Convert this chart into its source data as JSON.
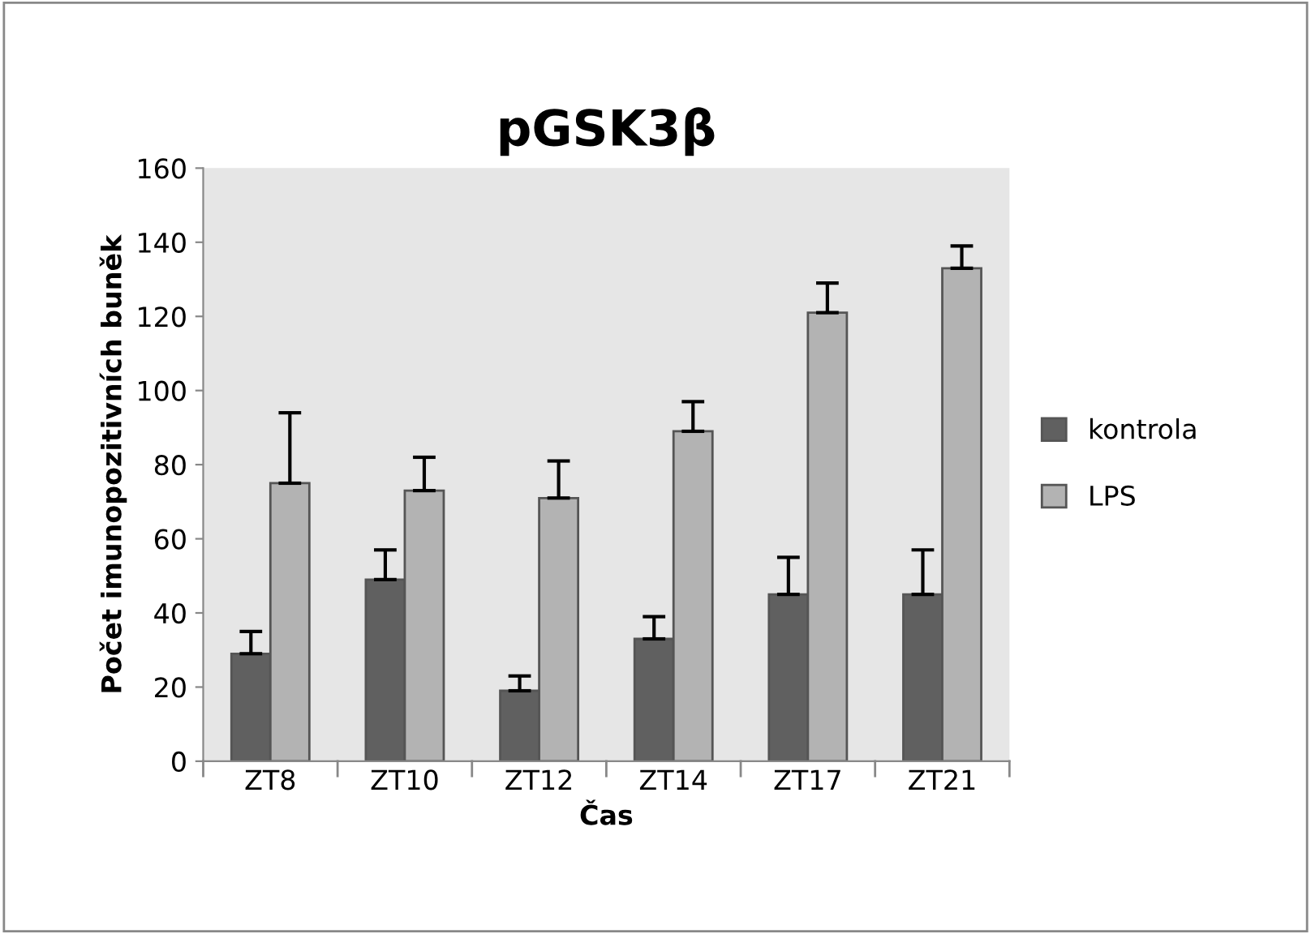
{
  "chart_data": {
    "type": "bar",
    "title": "pGSK3β",
    "xlabel": "Čas",
    "ylabel": "Počet imunopozitivních buněk",
    "categories": [
      "ZT8",
      "ZT10",
      "ZT12",
      "ZT14",
      "ZT17",
      "ZT21"
    ],
    "series": [
      {
        "name": "kontrola",
        "color": "#606060",
        "values": [
          29,
          49,
          19,
          33,
          45,
          45
        ],
        "errors": [
          [
            29,
            35
          ],
          [
            49,
            57
          ],
          [
            19,
            23
          ],
          [
            33,
            39
          ],
          [
            45,
            55
          ],
          [
            45,
            57
          ]
        ]
      },
      {
        "name": "LPS",
        "color": "#b3b3b3",
        "values": [
          75,
          73,
          71,
          89,
          121,
          133
        ],
        "errors": [
          [
            75,
            94
          ],
          [
            73,
            82
          ],
          [
            71,
            81
          ],
          [
            89,
            97
          ],
          [
            121,
            129
          ],
          [
            133,
            139
          ]
        ]
      }
    ],
    "ylim": [
      0,
      160
    ],
    "yticks": [
      0,
      20,
      40,
      60,
      80,
      100,
      120,
      140,
      160
    ],
    "grid": false,
    "legend": "right"
  }
}
